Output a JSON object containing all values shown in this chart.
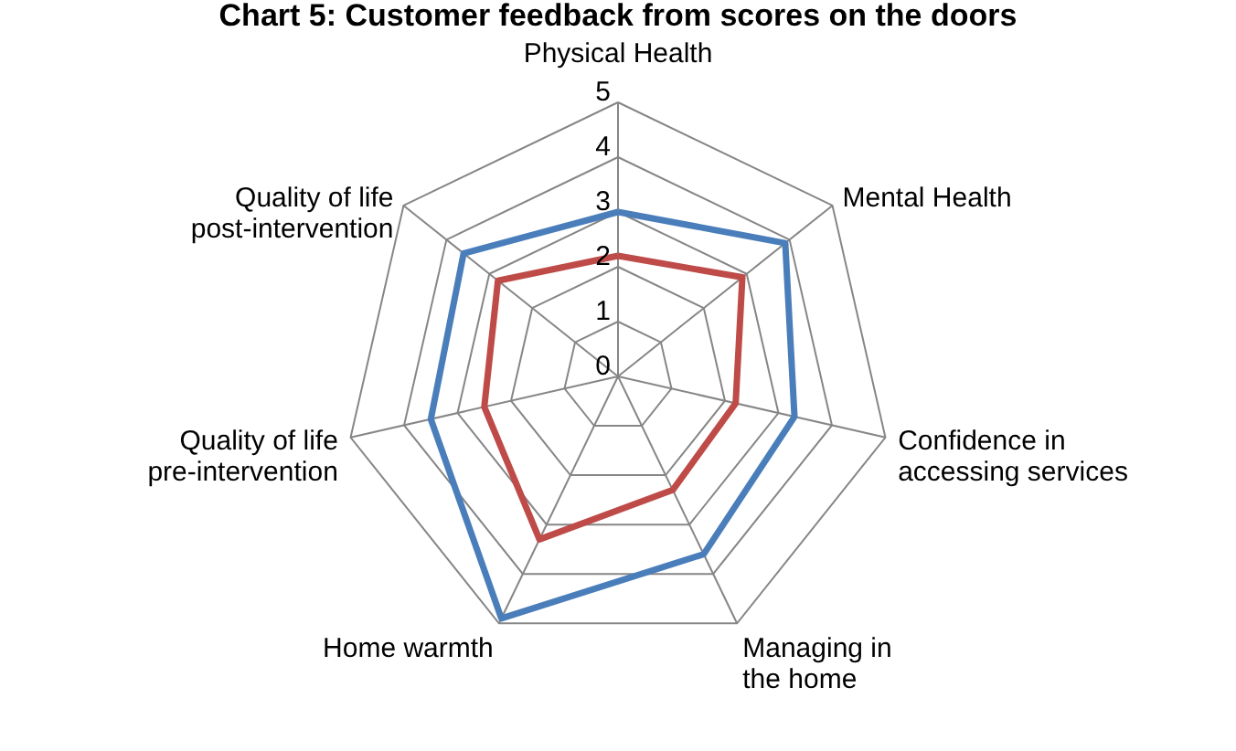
{
  "chart_data": {
    "type": "radar",
    "title": "Chart 5: Customer feedback from scores on the doors",
    "categories": [
      "Physical Health",
      "Mental Health",
      "Confidence in accessing services",
      "Managing in the home",
      "Home warmth",
      "Quality of life pre-intervention",
      "Quality of life post-intervention"
    ],
    "series": [
      {
        "color": "#4a7ebb",
        "values": [
          3,
          3.9,
          3.3,
          3.6,
          4.9,
          3.5,
          3.6
        ]
      },
      {
        "color": "#be4b48",
        "values": [
          2.2,
          2.9,
          2.2,
          2.3,
          3.3,
          2.5,
          2.8
        ]
      }
    ],
    "ylim": [
      0,
      5
    ],
    "yticks": [
      0,
      1,
      2,
      3,
      4,
      5
    ],
    "grid": true
  }
}
